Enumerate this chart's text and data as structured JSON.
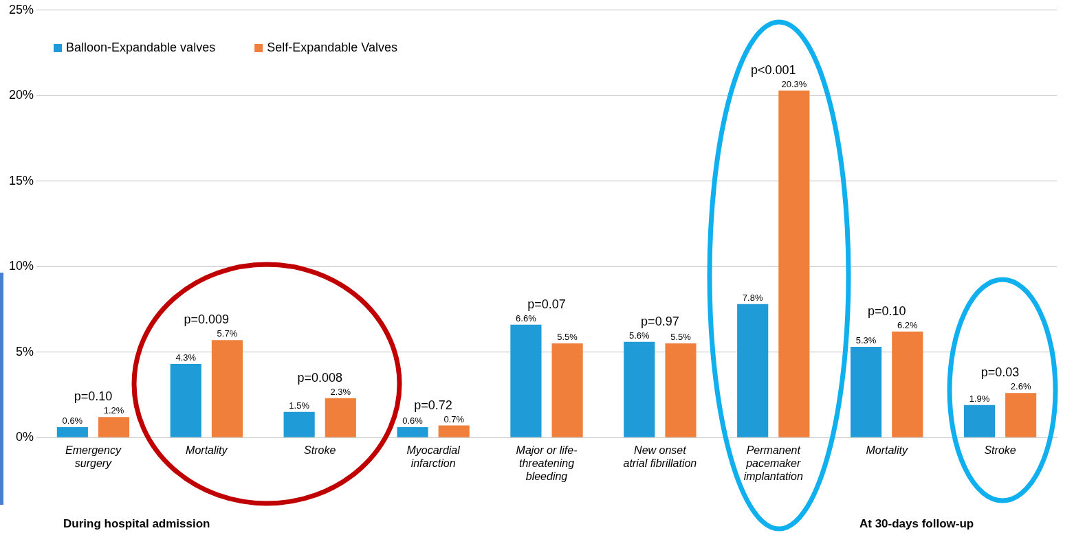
{
  "chart_data": {
    "type": "bar",
    "categories": [
      "Emergency surgery",
      "Mortality",
      "Stroke",
      "Myocardial infarction",
      "Major or life-threatening bleeding",
      "New onset atrial fibrillation",
      "Permanent pacemaker implantation",
      "Mortality",
      "Stroke"
    ],
    "series": [
      {
        "name": "Balloon-Expandable valves",
        "color": "#1f9bd7",
        "values": [
          0.6,
          4.3,
          1.5,
          0.6,
          6.6,
          5.6,
          7.8,
          5.3,
          1.9
        ],
        "value_labels": [
          "0.6%",
          "4.3%",
          "1.5%",
          "0.6%",
          "6.6%",
          "5.6%",
          "7.8%",
          "5.3%",
          "1.9%"
        ]
      },
      {
        "name": "Self-Expandable Valves",
        "color": "#f07f3c",
        "values": [
          1.2,
          5.7,
          2.3,
          0.7,
          5.5,
          5.5,
          20.3,
          6.2,
          2.6
        ],
        "value_labels": [
          "1.2%",
          "5.7%",
          "2.3%",
          "0.7%",
          "5.5%",
          "5.5%",
          "20.3%",
          "6.2%",
          "2.6%"
        ]
      }
    ],
    "ylim": [
      0,
      25
    ],
    "yticks": [
      {
        "value": 0,
        "label": "0%"
      },
      {
        "value": 5,
        "label": "5%"
      },
      {
        "value": 10,
        "label": "10%"
      },
      {
        "value": 15,
        "label": "15%"
      },
      {
        "value": 20,
        "label": "20%"
      },
      {
        "value": 25,
        "label": "25%"
      }
    ],
    "grid": "y",
    "legend": "top left",
    "annotations": [
      "p=0.10",
      "p=0.009",
      "p=0.008",
      "p=0.72",
      "p=0.07",
      "p=0.97",
      "p<0.001",
      "p=0.10",
      "p=0.03",
      "During hospital admission",
      "At 30-days follow-up"
    ]
  }
}
